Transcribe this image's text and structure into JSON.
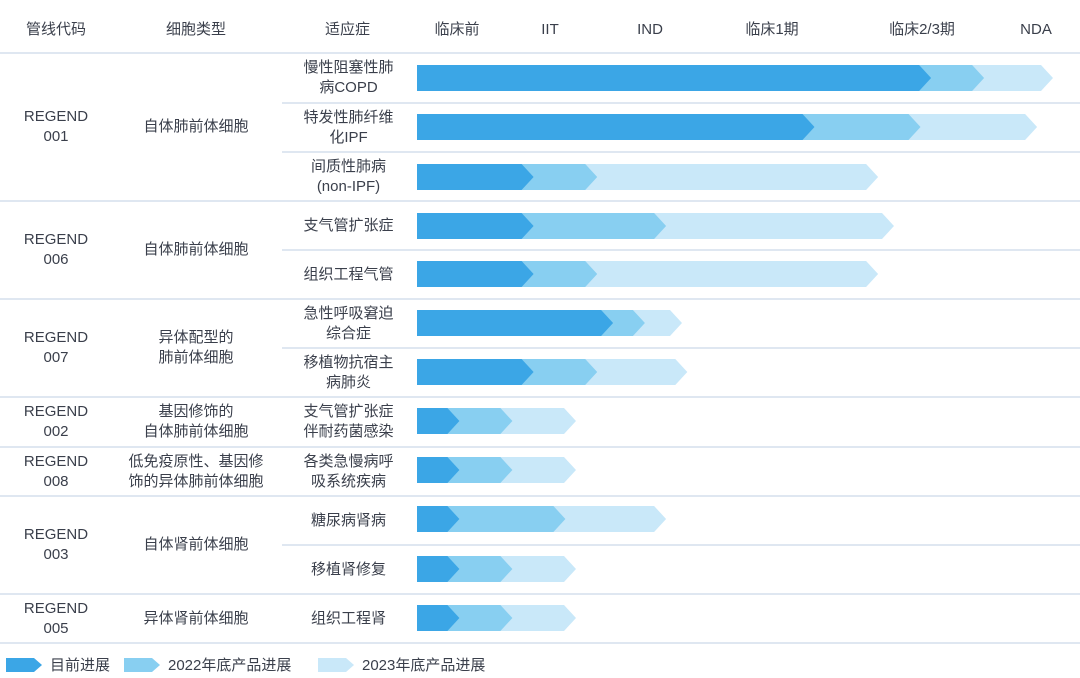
{
  "headers": {
    "code": "管线代码",
    "cell_type": "细胞类型",
    "indication": "适应症",
    "stages": [
      "临床前",
      "IIT",
      "IND",
      "临床1期",
      "临床2/3期",
      "NDA"
    ]
  },
  "programs": [
    {
      "code": "REGEND\n001",
      "cell_type": "自体肺前体细胞"
    },
    {
      "code": "REGEND\n006",
      "cell_type": "自体肺前体细胞"
    },
    {
      "code": "REGEND\n007",
      "cell_type": "异体配型的\n肺前体细胞"
    },
    {
      "code": "REGEND\n002",
      "cell_type": "基因修饰的\n自体肺前体细胞"
    },
    {
      "code": "REGEND\n008",
      "cell_type": "低免疫原性、基因修\n饰的异体肺前体细胞"
    },
    {
      "code": "REGEND\n003",
      "cell_type": "自体肾前体细胞"
    },
    {
      "code": "REGEND\n005",
      "cell_type": "异体肾前体细胞"
    }
  ],
  "legend": [
    "目前进展",
    "2022年底产品进展",
    "2023年底产品进展"
  ],
  "colors": {
    "current": "#3ba6e6",
    "end2022": "#88cff1",
    "end2023": "#c9e8f9",
    "text": "#3a3f4b",
    "rule": "#dfe7f1"
  },
  "chart_data": {
    "type": "bar",
    "orientation": "horizontal",
    "stacked": true,
    "x_axis": "clinical stage",
    "stage_labels": [
      "临床前",
      "IIT",
      "IND",
      "临床1期",
      "临床2/3期",
      "NDA"
    ],
    "categories": [
      "慢性阻塞性肺\n病COPD",
      "特发性肺纤维\n化IPF",
      "间质性肺病\n(non-IPF)",
      "支气管扩张症",
      "组织工程气管",
      "急性呼吸窘迫\n综合症",
      "移植物抗宿主\n病肺炎",
      "支气管扩张症\n伴耐药菌感染",
      "各类急慢病呼\n吸系统疾病",
      "糖尿病肾病",
      "移植肾修复",
      "组织工程肾"
    ],
    "series": [
      {
        "name": "目前进展",
        "values": [
          4.85,
          3.75,
          1.1,
          1.1,
          1.1,
          1.85,
          1.1,
          0.4,
          0.4,
          0.4,
          0.4,
          0.4
        ]
      },
      {
        "name": "2022年底产品进展",
        "values": [
          5.35,
          4.75,
          1.7,
          2.35,
          1.7,
          2.15,
          1.7,
          0.9,
          0.9,
          1.4,
          0.9,
          0.9
        ]
      },
      {
        "name": "2023年底产品进展",
        "values": [
          6.0,
          5.85,
          4.35,
          4.5,
          4.35,
          2.5,
          2.55,
          1.5,
          1.5,
          2.35,
          1.5,
          1.5
        ]
      }
    ]
  }
}
